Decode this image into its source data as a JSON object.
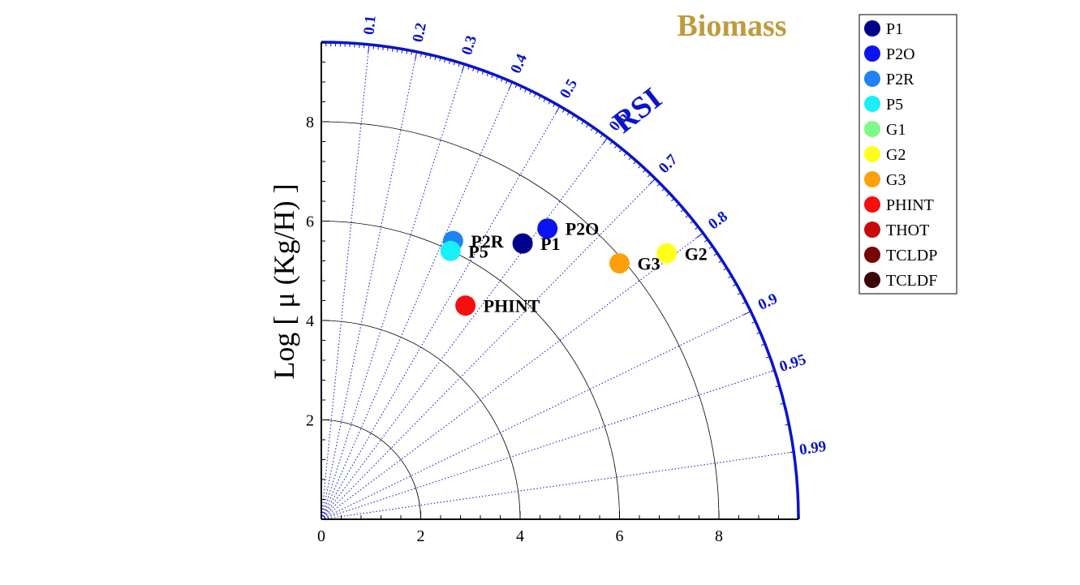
{
  "chart_data": {
    "type": "scatter",
    "subtype": "taylor-diagram",
    "title": "Biomass",
    "ylabel": "Log [ μ (Kg/H) ]",
    "arc_label": "RSI",
    "xlim": [
      0,
      9.6
    ],
    "ylim": [
      0,
      9.6
    ],
    "x_ticks": [
      0,
      2,
      4,
      6,
      8
    ],
    "y_ticks": [
      2,
      4,
      6,
      8
    ],
    "radial_arcs": [
      2,
      4,
      6,
      8
    ],
    "rsi_ticks": [
      {
        "value": 0.1,
        "label": "0.1"
      },
      {
        "value": 0.2,
        "label": "0.2"
      },
      {
        "value": 0.3,
        "label": "0.3"
      },
      {
        "value": 0.4,
        "label": "0.4"
      },
      {
        "value": 0.5,
        "label": "0.5"
      },
      {
        "value": 0.6,
        "label": "0.6"
      },
      {
        "value": 0.7,
        "label": "0.7"
      },
      {
        "value": 0.8,
        "label": "0.8"
      },
      {
        "value": 0.9,
        "label": "0.9"
      },
      {
        "value": 0.95,
        "label": "0.95"
      },
      {
        "value": 0.99,
        "label": "0.99"
      }
    ],
    "series": [
      {
        "name": "P1",
        "color": "#00008b",
        "x": 4.05,
        "y": 5.55,
        "label": "P1"
      },
      {
        "name": "P2O",
        "color": "#0a14f0",
        "x": 4.55,
        "y": 5.85,
        "label": "P2O"
      },
      {
        "name": "P2R",
        "color": "#1e82f5",
        "x": 2.65,
        "y": 5.6,
        "label": "P2R"
      },
      {
        "name": "P5",
        "color": "#19f0f5",
        "x": 2.6,
        "y": 5.4,
        "label": "P5"
      },
      {
        "name": "G1",
        "color": "#7dfa87",
        "x": null,
        "y": null,
        "label": ""
      },
      {
        "name": "G2",
        "color": "#ffff19",
        "x": 6.95,
        "y": 5.35,
        "label": "G2"
      },
      {
        "name": "G3",
        "color": "#fca00c",
        "x": 6.0,
        "y": 5.15,
        "label": "G3"
      },
      {
        "name": "PHINT",
        "color": "#f50f0f",
        "x": 2.9,
        "y": 4.3,
        "label": "PHINT"
      },
      {
        "name": "THOT",
        "color": "#c80a0a",
        "x": null,
        "y": null,
        "label": ""
      },
      {
        "name": "TCLDP",
        "color": "#780505",
        "x": null,
        "y": null,
        "label": ""
      },
      {
        "name": "TCLDF",
        "color": "#3c0505",
        "x": null,
        "y": null,
        "label": ""
      }
    ],
    "legend_position": "top-right",
    "colors": {
      "title": "#c09a3c",
      "rsi": "#0a14c8",
      "outer_arc": "#0a14c8",
      "axis": "#000000"
    }
  }
}
